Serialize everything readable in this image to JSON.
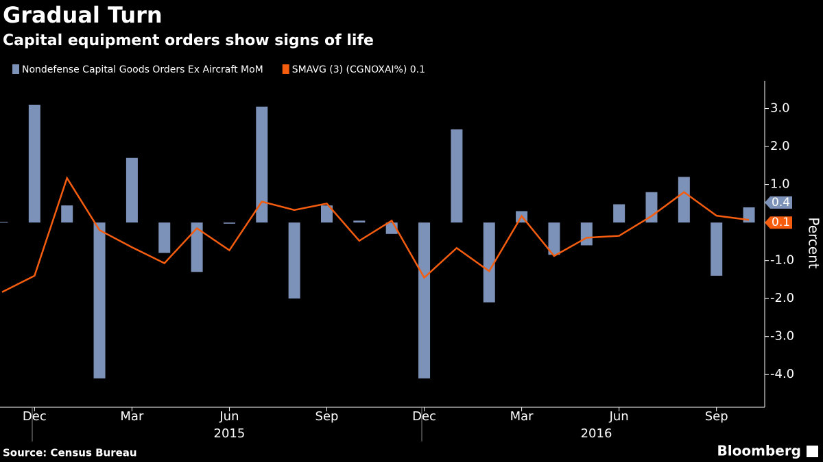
{
  "chart_data": {
    "type": "bar_line",
    "title": "Gradual Turn",
    "subtitle": "Capital equipment orders show signs of life",
    "source": "Source: Census Bureau",
    "brand": "Bloomberg",
    "y_label": "Percent",
    "categories": [
      null,
      "Dec",
      null,
      null,
      "Mar",
      null,
      null,
      "Jun",
      null,
      null,
      "Sep",
      null,
      null,
      "Dec",
      null,
      null,
      "Mar",
      null,
      null,
      "Jun",
      null,
      null,
      "Sep",
      null
    ],
    "years": [
      "2015",
      "2016"
    ],
    "series": [
      {
        "name": "Nondefense Capital Goods Orders Ex Aircraft MoM",
        "color": "#7d92b8",
        "kind": "bar",
        "last_label": "0.4",
        "values": [
          0.02,
          3.1,
          0.45,
          -4.1,
          1.7,
          -0.8,
          -1.3,
          -0.03,
          3.05,
          -2.0,
          0.45,
          0.05,
          -0.3,
          -4.1,
          2.45,
          -2.1,
          0.3,
          -0.85,
          -0.6,
          0.48,
          0.8,
          1.2,
          -1.4,
          0.4
        ]
      },
      {
        "name": "SMAVG (3) (CGNOXAI%) 0.1",
        "color": "#f65d0f",
        "kind": "line",
        "last_label": "0.1",
        "values": [
          -1.83,
          -1.4,
          1.17,
          -0.2,
          -0.65,
          -1.07,
          -0.15,
          -0.73,
          0.55,
          0.33,
          0.5,
          -0.48,
          0.05,
          -1.45,
          -0.67,
          -1.28,
          0.17,
          -0.88,
          -0.4,
          -0.35,
          0.17,
          0.8,
          0.18,
          0.07
        ]
      }
    ],
    "ylim": [
      -4.86,
      3.73
    ],
    "yticks": [
      {
        "value": 3,
        "label": "3.0"
      },
      {
        "value": 2,
        "label": "2.0"
      },
      {
        "value": 1,
        "label": "1.0"
      },
      {
        "value": -1,
        "label": "-1.0"
      },
      {
        "value": -2,
        "label": "-2.0"
      },
      {
        "value": -3,
        "label": "-3.0"
      },
      {
        "value": -4,
        "label": "-4.0"
      }
    ]
  }
}
